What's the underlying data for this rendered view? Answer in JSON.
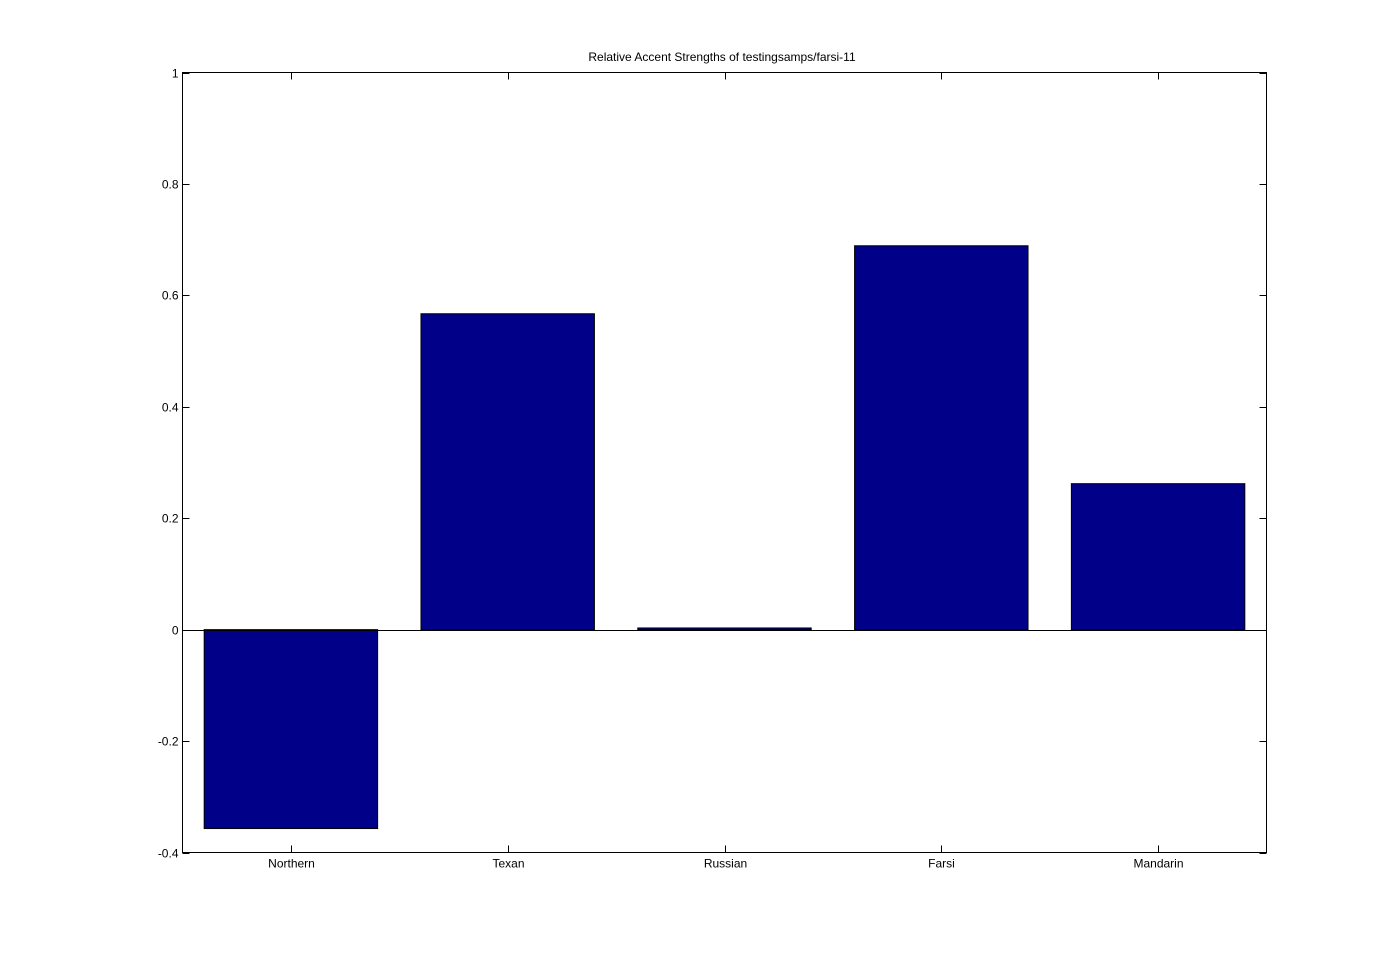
{
  "chart_data": {
    "type": "bar",
    "title": "Relative Accent Strengths of testingsamps/farsi-11",
    "xlabel": "",
    "ylabel": "",
    "categories": [
      "Northern",
      "Texan",
      "Russian",
      "Farsi",
      "Mandarin"
    ],
    "values": [
      -0.357,
      0.567,
      0.003,
      0.689,
      0.262
    ],
    "ylim": [
      -0.4,
      1
    ],
    "yticks": [
      "-0.4",
      "-0.2",
      "0",
      "0.2",
      "0.4",
      "0.6",
      "0.8",
      "1"
    ],
    "grid": false,
    "legend": "none",
    "bar_color": "#000088",
    "axis_color": "#000000"
  }
}
